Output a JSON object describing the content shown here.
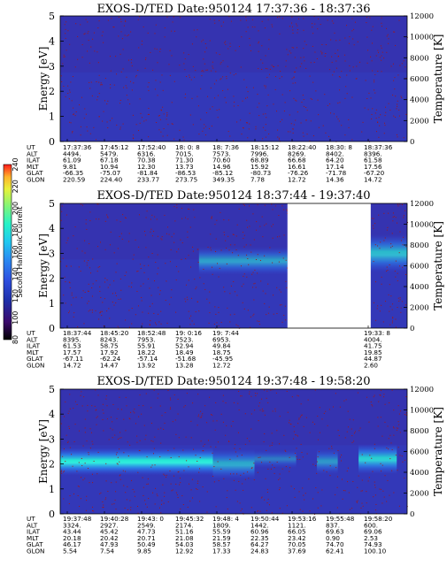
{
  "colors": {
    "background": "#ffffff",
    "text": "#000000",
    "colorbar": [
      "#000000",
      "#3b0a6b",
      "#1e2ea8",
      "#2e4fe0",
      "#2a8cf2",
      "#20c9f0",
      "#25f2c8",
      "#7ff57a",
      "#e8f23a",
      "#ffb22a",
      "#ff1a1a"
    ],
    "noise_dots": "#a01818",
    "boundary_dots": "#ff8aa0"
  },
  "colorbar": {
    "label": "Second Harmonic Current",
    "ticks": [
      "80",
      "100",
      "120",
      "140",
      "160",
      "180",
      "200",
      "220",
      "240"
    ]
  },
  "chart_data": [
    {
      "type": "heatmap",
      "title": "EXOS-D/TED   Date:950124   17:37:36 - 18:37:36",
      "ylabel": "Energy [eV]",
      "y2label": "Temperature [K]",
      "ylim": [
        0,
        5
      ],
      "y2lim": [
        0,
        12000
      ],
      "yticks": [
        "0",
        "1",
        "2",
        "3",
        "4",
        "5"
      ],
      "y2ticks": [
        "0",
        "2000",
        "4000",
        "6000",
        "8000",
        "10000",
        "12000"
      ],
      "grid": false,
      "data_gaps": [],
      "bands": [],
      "table": {
        "row_labels": [
          "UT",
          "ALT",
          "ILAT",
          "MLT",
          "GLAT",
          "GLON"
        ],
        "columns": [
          [
            "17:37:36",
            "4494.",
            "61.09",
            "9.81",
            "-66.35",
            "220.59"
          ],
          [
            "17:45:12",
            "5479.",
            "67.18",
            "10.94",
            "-75.07",
            "224.40"
          ],
          [
            "17:52:40",
            "6316.",
            "70.38",
            "12.30",
            "-81.84",
            "233.77"
          ],
          [
            "18: 0: 8",
            "7015.",
            "71.30",
            "13.73",
            "-86.53",
            "273.75"
          ],
          [
            "18: 7:36",
            "7573.",
            "70.60",
            "14.96",
            "-85.12",
            "349.35"
          ],
          [
            "18:15:12",
            "7996.",
            "68.89",
            "15.92",
            "-80.73",
            "7.78"
          ],
          [
            "18:22:40",
            "8269.",
            "66.68",
            "16.61",
            "-76.26",
            "12.72"
          ],
          [
            "18:30: 8",
            "8402.",
            "64.20",
            "17.14",
            "-71.78",
            "14.36"
          ],
          [
            "18:37:36",
            "8396.",
            "61.58",
            "17.56",
            "-67.20",
            "14.72"
          ]
        ]
      }
    },
    {
      "type": "heatmap",
      "title": "EXOS-D/TED   Date:950124   18:37:44 - 19:37:40",
      "ylabel": "Energy [eV]",
      "y2label": "Temperature [K]",
      "ylim": [
        0,
        5
      ],
      "y2lim": [
        0,
        12000
      ],
      "yticks": [
        "0",
        "1",
        "2",
        "3",
        "4",
        "5"
      ],
      "y2ticks": [
        "0",
        "2000",
        "4000",
        "6000",
        "8000",
        "10000",
        "12000"
      ],
      "grid": false,
      "data_gaps": [
        {
          "from": 0.655,
          "to": 0.895
        }
      ],
      "bands": [
        {
          "x0": 0.4,
          "x1": 0.655,
          "ycenter": 2.7,
          "half": 0.55,
          "intensity": 0.55
        },
        {
          "x0": 0.895,
          "x1": 1.0,
          "ycenter": 3.0,
          "half": 0.75,
          "intensity": 0.7
        }
      ],
      "table": {
        "row_labels": [
          "UT",
          "ALT",
          "ILAT",
          "MLT",
          "GLAT",
          "GLON"
        ],
        "columns": [
          [
            "18:37:44",
            "8395.",
            "61.53",
            "17.57",
            "-67.11",
            "14.72"
          ],
          [
            "18:45:20",
            "8243.",
            "58.75",
            "17.92",
            "-62.24",
            "14.47"
          ],
          [
            "18:52:48",
            "7953.",
            "55.91",
            "18.22",
            "-57.14",
            "13.92"
          ],
          [
            "19: 0:16",
            "7523.",
            "52.94",
            "18.49",
            "-51.68",
            "13.28"
          ],
          [
            "19: 7:44",
            "6953.",
            "49.84",
            "18.75",
            "-45.95",
            "12.72"
          ],
          [
            "",
            "",
            "",
            "",
            "",
            ""
          ],
          [
            "",
            "",
            "",
            "",
            "",
            ""
          ],
          [
            "",
            "",
            "",
            "",
            "",
            ""
          ],
          [
            "19:33: 8",
            "4004.",
            "41.75",
            "19.85",
            "44.87",
            "2.60"
          ]
        ]
      }
    },
    {
      "type": "heatmap",
      "title": "EXOS-D/TED   Date:950124   19:37:48 - 19:58:20",
      "ylabel": "Energy [eV]",
      "y2label": "Temperature [K]",
      "ylim": [
        0,
        5
      ],
      "y2lim": [
        0,
        12000
      ],
      "yticks": [
        "0",
        "1",
        "2",
        "3",
        "4",
        "5"
      ],
      "y2ticks": [
        "0",
        "2000",
        "4000",
        "6000",
        "8000",
        "10000",
        "12000"
      ],
      "grid": false,
      "data_gaps": [],
      "bands": [
        {
          "x0": 0.0,
          "x1": 0.44,
          "ycenter": 2.1,
          "half": 0.55,
          "intensity": 0.95
        },
        {
          "x0": 0.44,
          "x1": 0.56,
          "ycenter": 2.0,
          "half": 0.6,
          "intensity": 0.6
        },
        {
          "x0": 0.56,
          "x1": 0.68,
          "ycenter": 2.2,
          "half": 0.35,
          "intensity": 0.35
        },
        {
          "x0": 0.74,
          "x1": 0.8,
          "ycenter": 2.1,
          "half": 0.5,
          "intensity": 0.5
        },
        {
          "x0": 0.86,
          "x1": 0.97,
          "ycenter": 2.2,
          "half": 0.6,
          "intensity": 0.8
        }
      ],
      "table": {
        "row_labels": [
          "UT",
          "ALT",
          "ILAT",
          "MLT",
          "GLAT",
          "GLON"
        ],
        "columns": [
          [
            "19:37:48",
            "3324.",
            "43.44",
            "20.18",
            "46.17",
            "5.54"
          ],
          [
            "19:40:28",
            "2927.",
            "45.42",
            "20.42",
            "47.93",
            "7.54"
          ],
          [
            "19:43: 0",
            "2549.",
            "47.73",
            "20.71",
            "50.49",
            "9.85"
          ],
          [
            "19:45:32",
            "2174.",
            "51.16",
            "21.08",
            "54.03",
            "12.92"
          ],
          [
            "19:48: 4",
            "1809.",
            "55.59",
            "21.59",
            "58.57",
            "17.33"
          ],
          [
            "19:50:44",
            "1442.",
            "60.96",
            "22.35",
            "64.27",
            "24.83"
          ],
          [
            "19:53:16",
            "1121.",
            "66.05",
            "23.42",
            "70.05",
            "37.69"
          ],
          [
            "19:55:48",
            "837.",
            "69.63",
            "0.90",
            "74.70",
            "62.41"
          ],
          [
            "19:58:20",
            "600.",
            "69.06",
            "2.53",
            "74.93",
            "100.10"
          ]
        ]
      }
    }
  ]
}
